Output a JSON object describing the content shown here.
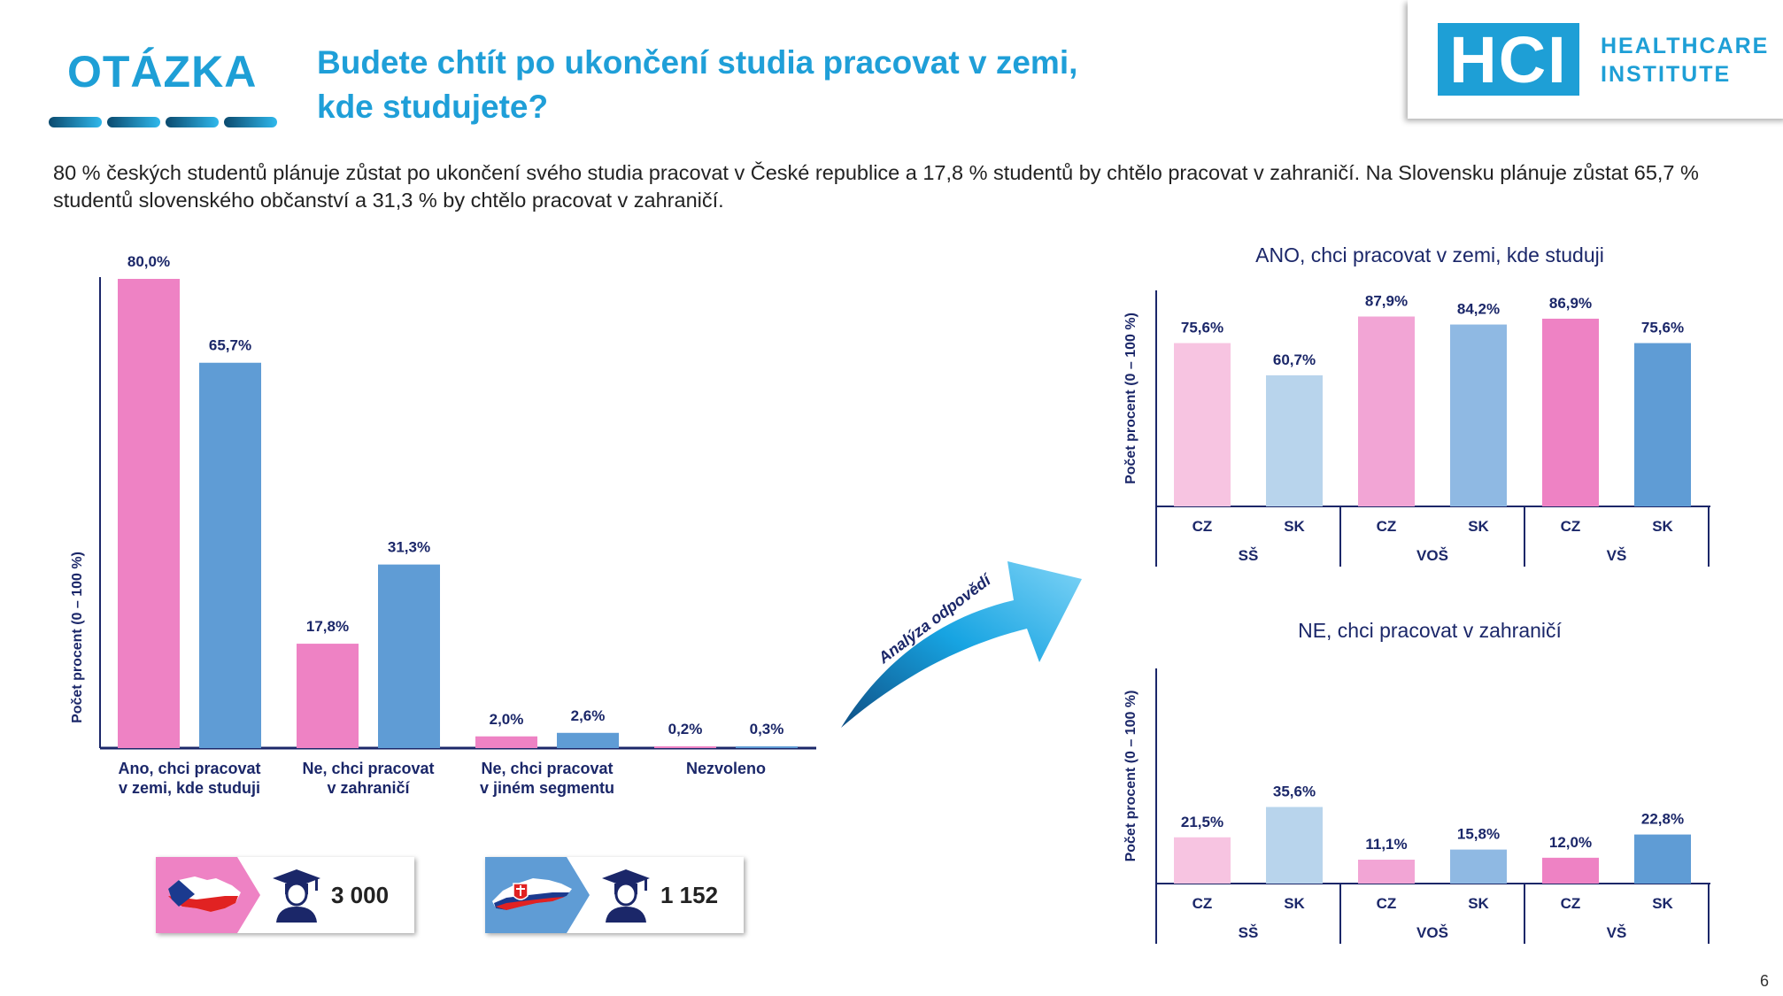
{
  "header": {
    "section_label": "OTÁZKA",
    "question_line1": "Budete chtít po ukončení studia pracovat v zemi,",
    "question_line2": "kde studujete?",
    "logo_mark": "HCI",
    "logo_line1": "HEALTHCARE",
    "logo_line2": "INSTITUTE"
  },
  "description": "80 % českých studentů plánuje zůstat po ukončení svého studia pracovat v České republice a 17,8 % studentů by chtělo pracovat v zahraničí. Na Slovensku plánuje zůstat 65,7 % studentů slovenského občanství a 31,3 % by chtělo pracovat v zahraničí.",
  "arrow_label": "Analýza odpovědí",
  "respondents": {
    "cz_count": "3 000",
    "sk_count": "1 152"
  },
  "page_number": "6",
  "colors": {
    "accent_blue": "#1e9fd6",
    "cz_pink": "#ee82c4",
    "sk_blue": "#5f9cd5",
    "axis_navy": "#1b2769"
  },
  "chart_data": [
    {
      "type": "bar",
      "ylabel": "Počet procent  (0 – 100 %)",
      "ylim": [
        0,
        100
      ],
      "categories": [
        [
          "Ano, chci pracovat",
          "v zemi, kde studuji"
        ],
        [
          "Ne, chci pracovat",
          "v zahraničí"
        ],
        [
          "Ne, chci pracovat",
          "v jiném segmentu"
        ],
        [
          "Nezvoleno"
        ]
      ],
      "series": [
        {
          "values": [
            80.0,
            17.8,
            2.0,
            0.2
          ],
          "labels": [
            "80,0%",
            "17,8%",
            "2,0%",
            "0,2%"
          ],
          "color": "#ee82c4"
        },
        {
          "values": [
            65.7,
            31.3,
            2.6,
            0.3
          ],
          "labels": [
            "65,7%",
            "31,3%",
            "2,6%",
            "0,3%"
          ],
          "color": "#5f9cd5"
        }
      ]
    },
    {
      "type": "bar",
      "title": "ANO, chci pracovat v zemi, kde studuji",
      "ylabel": "Počet procent  (0 – 100 %)",
      "ylim": [
        0,
        100
      ],
      "categories": [
        "CZ",
        "SK",
        "CZ",
        "SK",
        "CZ",
        "SK"
      ],
      "groups": [
        "SŠ",
        "VOŠ",
        "VŠ"
      ],
      "values": [
        75.6,
        60.7,
        87.9,
        84.2,
        86.9,
        75.6
      ],
      "labels": [
        "75,6%",
        "60,7%",
        "87,9%",
        "84,2%",
        "86,9%",
        "75,6%"
      ],
      "colors": [
        "#f7c4e1",
        "#b8d4ec",
        "#f2a5d5",
        "#8fb9e3",
        "#ee82c4",
        "#5f9cd5"
      ]
    },
    {
      "type": "bar",
      "title": "NE, chci pracovat v zahraničí",
      "ylabel": "Počet procent  (0 – 100 %)",
      "ylim": [
        0,
        100
      ],
      "categories": [
        "CZ",
        "SK",
        "CZ",
        "SK",
        "CZ",
        "SK"
      ],
      "groups": [
        "SŠ",
        "VOŠ",
        "VŠ"
      ],
      "values": [
        21.5,
        35.6,
        11.1,
        15.8,
        12.0,
        22.8
      ],
      "labels": [
        "21,5%",
        "35,6%",
        "11,1%",
        "15,8%",
        "12,0%",
        "22,8%"
      ],
      "colors": [
        "#f7c4e1",
        "#b8d4ec",
        "#f2a5d5",
        "#8fb9e3",
        "#ee82c4",
        "#5f9cd5"
      ]
    }
  ]
}
